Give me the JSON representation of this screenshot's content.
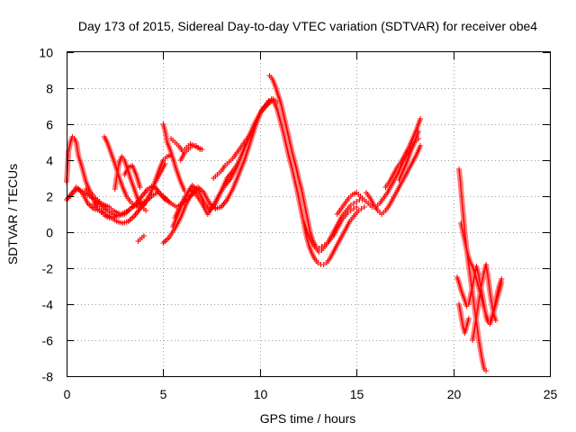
{
  "chart_data": {
    "type": "scatter",
    "title": "Day 173 of 2015, Sidereal Day-to-day VTEC variation (SDTVAR) for receiver obe4",
    "xlabel": "GPS time / hours",
    "ylabel": "SDTVAR / TECUs",
    "xlim": [
      0,
      25
    ],
    "ylim": [
      -8,
      10
    ],
    "xticks": [
      0,
      5,
      10,
      15,
      20,
      25
    ],
    "yticks": [
      -8,
      -6,
      -4,
      -2,
      0,
      2,
      4,
      6,
      8,
      10
    ],
    "grid": true,
    "marker": "+",
    "color": "#ff0000",
    "series": [
      {
        "x": [
          0.0,
          0.1,
          0.2,
          0.3,
          0.4,
          0.5,
          0.6,
          0.8,
          1.0,
          1.2,
          1.4,
          1.6,
          1.8,
          2.0,
          2.2,
          2.4,
          2.6,
          2.8,
          3.0,
          3.2,
          3.4,
          3.6,
          3.8,
          4.0
        ],
        "y": [
          2.8,
          4.5,
          5.0,
          5.3,
          5.2,
          5.0,
          4.3,
          3.6,
          2.8,
          2.3,
          2.0,
          1.8,
          1.6,
          1.5,
          1.4,
          1.2,
          1.1,
          1.0,
          1.1,
          1.2,
          1.4,
          1.5,
          1.6,
          1.7
        ]
      },
      {
        "x": [
          0.0,
          0.3,
          0.6,
          0.9,
          1.2,
          1.5,
          1.8,
          2.1,
          2.4,
          2.7,
          3.0,
          3.3,
          3.6,
          3.9,
          4.2,
          4.5,
          4.8,
          5.1,
          5.4,
          5.7,
          6.0,
          6.3,
          6.6
        ],
        "y": [
          1.8,
          2.2,
          2.4,
          2.2,
          2.0,
          1.8,
          1.5,
          1.2,
          1.0,
          0.9,
          1.0,
          1.3,
          1.6,
          2.0,
          2.4,
          2.6,
          2.2,
          1.8,
          1.6,
          1.4,
          1.6,
          1.9,
          2.2
        ]
      },
      {
        "x": [
          0.2,
          0.5,
          0.8,
          1.1,
          1.4,
          1.7,
          2.0,
          2.3,
          2.6,
          2.9,
          3.2,
          3.5,
          3.8,
          4.1,
          4.4,
          4.7,
          5.0,
          5.3
        ],
        "y": [
          2.0,
          2.5,
          2.2,
          1.6,
          1.3,
          1.2,
          1.0,
          0.8,
          0.6,
          0.5,
          0.6,
          0.9,
          1.3,
          1.7,
          2.0,
          2.2,
          2.0,
          1.7
        ]
      },
      {
        "x": [
          1.0,
          1.2,
          1.4,
          1.6,
          1.8,
          2.0,
          2.2,
          2.4,
          2.6
        ],
        "y": [
          2.4,
          2.1,
          1.8,
          1.4,
          1.2,
          1.0,
          0.9,
          0.8,
          0.9
        ]
      },
      {
        "x": [
          1.4,
          1.6,
          1.8,
          2.0,
          2.2
        ],
        "y": [
          1.6,
          1.3,
          1.1,
          0.9,
          0.8
        ]
      },
      {
        "x": [
          1.95,
          2.1,
          2.3,
          2.5,
          2.7,
          2.9,
          3.1,
          3.3,
          3.5,
          3.7,
          3.9
        ],
        "y": [
          5.3,
          5.0,
          4.4,
          3.8,
          3.1,
          2.5,
          2.0,
          1.7,
          1.5,
          1.4,
          1.4
        ]
      },
      {
        "x": [
          2.5,
          2.6,
          2.7,
          2.85,
          3.0,
          3.15,
          3.3,
          3.5,
          3.7,
          3.9,
          4.1
        ],
        "y": [
          2.4,
          3.1,
          3.8,
          4.2,
          4.0,
          3.5,
          3.0,
          2.4,
          1.8,
          1.4,
          1.2
        ]
      },
      {
        "x": [
          3.0,
          3.2,
          3.4,
          3.6,
          3.8
        ],
        "y": [
          3.2,
          3.6,
          3.7,
          3.2,
          2.5
        ]
      },
      {
        "x": [
          3.7,
          3.8,
          3.9,
          4.0
        ],
        "y": [
          -0.5,
          -0.4,
          -0.3,
          -0.2
        ]
      },
      {
        "x": [
          4.0,
          4.2,
          4.4,
          4.6,
          4.8,
          5.0,
          5.2,
          5.4
        ],
        "y": [
          1.5,
          1.9,
          2.3,
          2.9,
          3.5,
          4.0,
          4.2,
          4.3
        ]
      },
      {
        "x": [
          4.5,
          4.7,
          4.9,
          5.1
        ],
        "y": [
          2.6,
          3.0,
          3.4,
          3.8
        ]
      },
      {
        "x": [
          5.0,
          5.1,
          5.2,
          5.35,
          5.5,
          5.7,
          5.9,
          6.1
        ],
        "y": [
          6.0,
          5.6,
          5.0,
          4.6,
          4.1,
          3.4,
          2.8,
          2.3
        ]
      },
      {
        "x": [
          5.0,
          5.3,
          5.6,
          5.9,
          6.2,
          6.5,
          6.8,
          7.1,
          7.4,
          7.7,
          8.0,
          8.3,
          8.6,
          8.9,
          9.2,
          9.5,
          9.8,
          10.1,
          10.4,
          10.7,
          10.9
        ],
        "y": [
          -0.6,
          -0.3,
          0.2,
          0.8,
          1.6,
          2.2,
          2.5,
          2.2,
          1.6,
          1.3,
          1.4,
          1.8,
          2.4,
          3.2,
          4.0,
          5.0,
          6.0,
          6.8,
          7.2,
          7.4,
          7.2
        ]
      },
      {
        "x": [
          5.5,
          5.8,
          6.1,
          6.4,
          6.7,
          7.0,
          7.3,
          7.6,
          7.9,
          8.2,
          8.5,
          8.8,
          9.1,
          9.4,
          9.7,
          10.0,
          10.3,
          10.6
        ],
        "y": [
          0.3,
          1.1,
          1.9,
          2.4,
          2.1,
          1.6,
          1.0,
          1.5,
          2.1,
          2.6,
          3.0,
          3.6,
          4.4,
          5.2,
          6.0,
          6.6,
          7.0,
          7.3
        ]
      },
      {
        "x": [
          5.6,
          5.9,
          6.2,
          6.5,
          6.8,
          7.1,
          7.4,
          7.7,
          8.0,
          8.3,
          8.6,
          8.9,
          9.2,
          9.5,
          9.8,
          10.1,
          10.4
        ],
        "y": [
          0.8,
          1.5,
          2.1,
          2.6,
          2.3,
          1.7,
          1.2,
          1.6,
          2.3,
          3.0,
          3.4,
          3.9,
          4.7,
          5.4,
          6.2,
          6.8,
          7.1
        ]
      },
      {
        "x": [
          5.4,
          5.6,
          5.8,
          6.0,
          6.2,
          6.4,
          6.6,
          6.8,
          7.0
        ],
        "y": [
          5.2,
          5.0,
          4.8,
          4.5,
          4.7,
          4.9,
          4.8,
          4.7,
          4.6
        ]
      },
      {
        "x": [
          5.9,
          6.1,
          6.3,
          6.5,
          6.7,
          6.9
        ],
        "y": [
          4.0,
          4.4,
          4.6,
          4.8,
          4.8,
          4.6
        ]
      },
      {
        "x": [
          7.6,
          7.8,
          8.0,
          8.2,
          8.4,
          8.6,
          8.8,
          9.0,
          9.2,
          9.4,
          9.6,
          9.8
        ],
        "y": [
          3.0,
          3.2,
          3.4,
          3.7,
          3.9,
          4.1,
          4.4,
          4.7,
          5.0,
          5.3,
          5.7,
          6.1
        ]
      },
      {
        "x": [
          10.5,
          10.65,
          10.8,
          10.95,
          11.1,
          11.25,
          11.4,
          11.55,
          11.7,
          11.85,
          12.0,
          12.15,
          12.3,
          12.45,
          12.6,
          12.75,
          12.9,
          13.05,
          13.2,
          13.35,
          13.5,
          13.65,
          13.8,
          13.95,
          14.1,
          14.25,
          14.4,
          14.55,
          14.7,
          14.85,
          15.0
        ],
        "y": [
          8.7,
          8.5,
          8.1,
          7.6,
          7.1,
          6.4,
          5.7,
          5.0,
          4.3,
          3.7,
          3.0,
          2.4,
          1.6,
          0.8,
          0.0,
          -0.5,
          -0.8,
          -0.9,
          -0.8,
          -0.7,
          -0.6,
          -0.4,
          -0.2,
          0.1,
          0.4,
          0.7,
          0.9,
          1.1,
          1.2,
          1.3,
          1.4
        ]
      },
      {
        "x": [
          10.3,
          10.45,
          10.6,
          10.75,
          10.9,
          11.05,
          11.2,
          11.35,
          11.5,
          11.65,
          11.8,
          11.95,
          12.1,
          12.25,
          12.4,
          12.55,
          12.7,
          12.85,
          13.0,
          13.15,
          13.3,
          13.45,
          13.6,
          13.75,
          13.9,
          14.05,
          14.2,
          14.35,
          14.5,
          14.65,
          14.8,
          14.95,
          15.1,
          15.25,
          15.4
        ],
        "y": [
          7.0,
          7.3,
          7.4,
          7.2,
          6.8,
          6.2,
          5.6,
          4.9,
          4.2,
          3.6,
          2.9,
          2.2,
          1.4,
          0.6,
          -0.2,
          -0.8,
          -1.2,
          -1.5,
          -1.7,
          -1.8,
          -1.8,
          -1.7,
          -1.5,
          -1.2,
          -0.9,
          -0.6,
          -0.3,
          0.0,
          0.3,
          0.6,
          0.8,
          1.0,
          1.2,
          1.3,
          1.4
        ]
      },
      {
        "x": [
          12.3,
          12.45,
          12.6,
          12.75,
          12.9,
          13.05,
          13.2,
          13.35,
          13.5,
          13.65,
          13.8,
          13.95,
          14.1,
          14.25,
          14.4,
          14.55,
          14.7,
          14.85,
          15.0,
          15.15,
          15.3
        ],
        "y": [
          0.5,
          0.0,
          -0.4,
          -0.7,
          -0.9,
          -1.1,
          -1.0,
          -0.8,
          -0.6,
          -0.3,
          0.0,
          0.3,
          0.6,
          0.9,
          1.1,
          1.3,
          1.5,
          1.6,
          1.7,
          1.8,
          1.8
        ]
      },
      {
        "x": [
          14.0,
          14.2,
          14.4,
          14.6,
          14.8,
          15.0,
          15.2,
          15.4,
          15.6,
          15.8,
          16.0,
          16.2,
          16.4,
          16.6,
          16.8,
          17.0,
          17.2,
          17.4,
          17.6,
          17.8,
          18.0,
          18.2
        ],
        "y": [
          1.0,
          1.3,
          1.6,
          1.9,
          2.1,
          2.2,
          2.0,
          1.8,
          1.6,
          1.4,
          1.4,
          1.6,
          1.9,
          2.2,
          2.6,
          3.0,
          3.4,
          3.9,
          4.3,
          4.7,
          5.0,
          5.2
        ]
      },
      {
        "x": [
          15.5,
          15.7,
          15.9,
          16.1,
          16.3,
          16.5,
          16.7,
          16.9,
          17.1,
          17.3,
          17.5,
          17.7,
          17.9,
          18.1,
          18.3
        ],
        "y": [
          2.2,
          1.9,
          1.5,
          1.2,
          1.0,
          1.2,
          1.5,
          1.9,
          2.3,
          2.7,
          3.1,
          3.5,
          3.9,
          4.3,
          4.8
        ]
      },
      {
        "x": [
          16.5,
          16.7,
          16.9,
          17.1,
          17.3,
          17.5,
          17.7,
          17.9,
          18.1,
          18.3
        ],
        "y": [
          2.5,
          2.8,
          3.2,
          3.6,
          3.9,
          4.3,
          4.7,
          5.2,
          5.7,
          6.3
        ]
      },
      {
        "x": [
          17.2,
          17.4,
          17.6,
          17.8,
          18.0,
          18.2
        ],
        "y": [
          2.9,
          3.4,
          3.9,
          4.5,
          5.0,
          5.6
        ]
      },
      {
        "x": [
          20.3,
          20.35,
          20.4,
          20.45,
          20.5,
          20.55,
          20.6,
          20.65,
          20.7,
          20.8,
          20.9,
          21.0,
          21.1,
          21.2,
          21.3,
          21.4,
          21.5,
          21.6,
          21.7
        ],
        "y": [
          3.5,
          3.0,
          2.4,
          1.8,
          1.2,
          0.6,
          0.0,
          -0.5,
          -1.0,
          -1.8,
          -2.6,
          -3.4,
          -4.2,
          -5.0,
          -5.8,
          -6.5,
          -7.1,
          -7.6,
          -7.7
        ]
      },
      {
        "x": [
          20.2,
          20.3,
          20.4,
          20.5,
          20.6,
          20.7,
          20.8,
          20.9,
          21.0,
          21.1,
          21.2,
          21.3,
          21.4,
          21.5,
          21.6,
          21.7,
          21.8,
          21.9,
          22.0,
          22.1,
          22.2,
          22.3,
          22.4,
          22.5
        ],
        "y": [
          -2.5,
          -2.8,
          -3.2,
          -3.5,
          -3.8,
          -4.1,
          -4.0,
          -3.5,
          -3.0,
          -2.4,
          -1.9,
          -2.3,
          -2.9,
          -3.5,
          -4.1,
          -4.7,
          -5.0,
          -5.1,
          -4.8,
          -4.4,
          -4.0,
          -3.6,
          -3.2,
          -2.8
        ]
      },
      {
        "x": [
          20.4,
          20.5,
          20.6,
          20.7,
          20.8,
          20.9,
          21.0,
          21.1,
          21.2,
          21.3,
          21.4,
          21.5,
          21.6,
          21.7,
          21.8,
          21.9,
          22.0,
          22.1,
          22.2,
          22.3,
          22.4,
          22.5
        ],
        "y": [
          0.5,
          0.0,
          -0.5,
          -1.0,
          -1.4,
          -1.7,
          -1.9,
          -2.2,
          -2.6,
          -3.0,
          -3.4,
          -3.8,
          -4.2,
          -4.6,
          -4.9,
          -5.0,
          -4.7,
          -4.3,
          -3.8,
          -3.3,
          -2.9,
          -2.6
        ]
      },
      {
        "x": [
          20.3,
          20.4,
          20.5,
          20.6,
          20.7,
          20.8
        ],
        "y": [
          -4.0,
          -4.6,
          -5.2,
          -5.6,
          -5.2,
          -4.8
        ]
      },
      {
        "x": [
          21.0,
          21.1,
          21.2,
          21.3,
          21.4,
          21.5,
          21.6,
          21.7,
          21.8,
          21.9,
          22.0,
          22.1,
          22.2
        ],
        "y": [
          -6.0,
          -5.4,
          -4.7,
          -4.0,
          -3.3,
          -2.7,
          -2.2,
          -1.8,
          -2.5,
          -3.3,
          -4.0,
          -4.6,
          -4.9
        ]
      }
    ]
  }
}
